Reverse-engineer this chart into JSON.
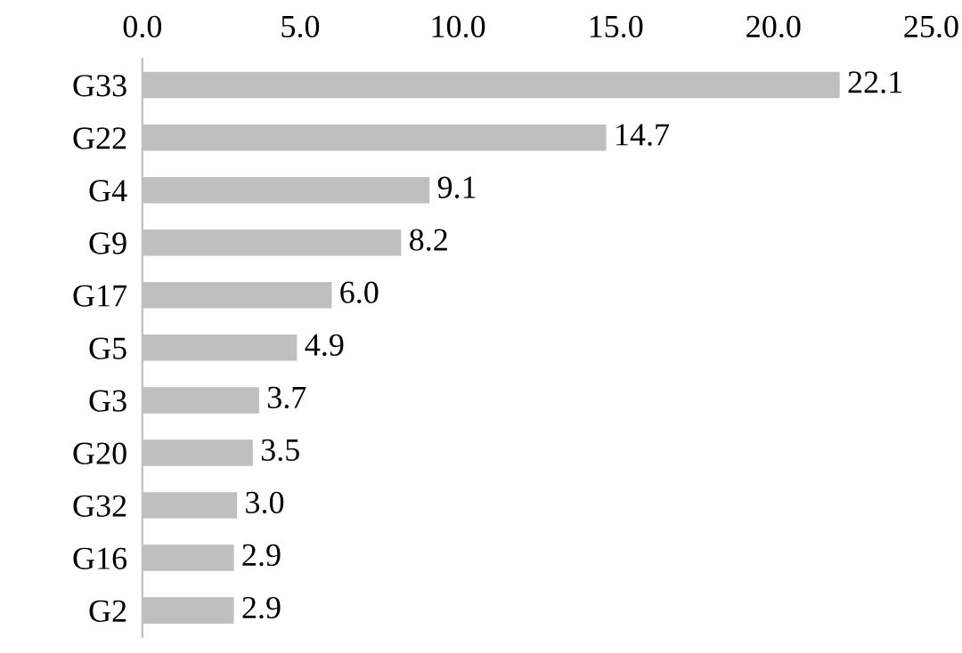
{
  "chart_data": {
    "type": "bar",
    "orientation": "horizontal",
    "categories": [
      "G33",
      "G22",
      "G4",
      "G9",
      "G17",
      "G5",
      "G3",
      "G20",
      "G32",
      "G16",
      "G2"
    ],
    "values": [
      22.1,
      14.7,
      9.1,
      8.2,
      6.0,
      4.9,
      3.7,
      3.5,
      3.0,
      2.9,
      2.9
    ],
    "color": "#bfbfbf",
    "xlim": [
      0,
      25
    ],
    "xticks": [
      {
        "value": 0,
        "label": "0.0"
      },
      {
        "value": 5,
        "label": "5.0"
      },
      {
        "value": 10,
        "label": "10.0"
      },
      {
        "value": 15,
        "label": "15.0"
      },
      {
        "value": 20,
        "label": "20.0"
      },
      {
        "value": 25,
        "label": "25.0"
      }
    ],
    "value_labels": [
      "22.1",
      "14.7",
      "9.1",
      "8.2",
      "6.0",
      "4.9",
      "3.7",
      "3.5",
      "3.0",
      "2.9",
      "2.9"
    ],
    "grid": false,
    "legend": false
  }
}
